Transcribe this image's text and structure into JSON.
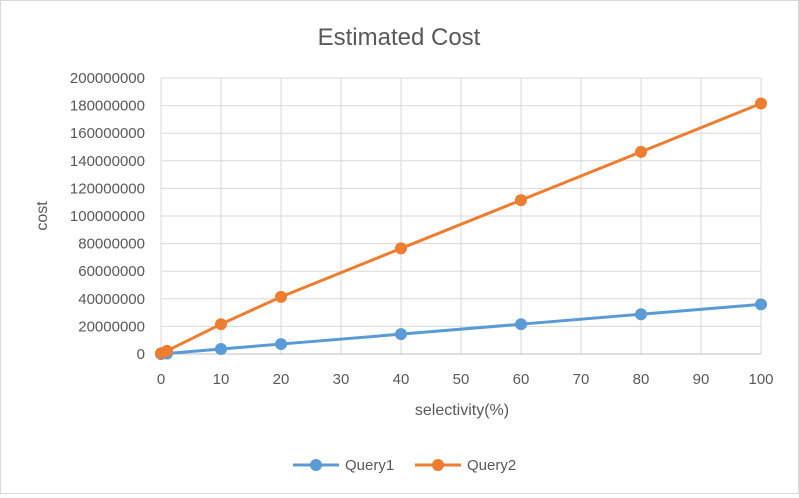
{
  "chart_data": {
    "type": "line",
    "title": "Estimated Cost",
    "xlabel": "selectivity(%)",
    "ylabel": "cost",
    "xlim": [
      0,
      100
    ],
    "ylim": [
      0,
      200000000
    ],
    "x_ticks": [
      0,
      10,
      20,
      30,
      40,
      50,
      60,
      70,
      80,
      90,
      100
    ],
    "y_ticks": [
      0,
      20000000,
      40000000,
      60000000,
      80000000,
      100000000,
      120000000,
      140000000,
      160000000,
      180000000,
      200000000
    ],
    "grid": true,
    "legend_position": "bottom",
    "series": [
      {
        "name": "Query1",
        "color": "#5b9bd5",
        "points": [
          [
            0,
            0
          ],
          [
            1,
            360000
          ],
          [
            10,
            3600000
          ],
          [
            20,
            7200000
          ],
          [
            40,
            14400000
          ],
          [
            60,
            21600000
          ],
          [
            80,
            28800000
          ],
          [
            100,
            36000000
          ]
        ]
      },
      {
        "name": "Query2",
        "color": "#ed7d31",
        "points": [
          [
            0,
            500000
          ],
          [
            1,
            2300000
          ],
          [
            10,
            21600000
          ],
          [
            20,
            41400000
          ],
          [
            40,
            76500000
          ],
          [
            60,
            111500000
          ],
          [
            80,
            146500000
          ],
          [
            100,
            181500000
          ]
        ]
      }
    ]
  }
}
